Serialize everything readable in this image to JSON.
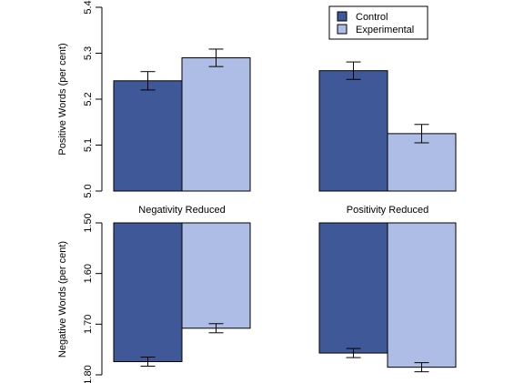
{
  "chart_data": [
    {
      "type": "bar",
      "panel": "top",
      "categories": [
        "Negativity Reduced",
        "Positivity Reduced"
      ],
      "ylabel": "Positive Words (per cent)",
      "ylim": [
        5.0,
        5.4
      ],
      "yticks": [
        "5.0",
        "5.1",
        "5.2",
        "5.3",
        "5.4"
      ],
      "grid": false,
      "legend_position": "top-right",
      "series": [
        {
          "name": "Control",
          "values": [
            5.24,
            5.262
          ],
          "errors": [
            0.02,
            0.019
          ]
        },
        {
          "name": "Experimental",
          "values": [
            5.29,
            5.125
          ],
          "errors": [
            0.019,
            0.02
          ]
        }
      ]
    },
    {
      "type": "bar",
      "panel": "bottom",
      "categories": [
        "Negativity Reduced",
        "Positivity Reduced"
      ],
      "ylabel": "Negative Words (per cent)",
      "ylim": [
        1.5,
        1.8
      ],
      "y_inverted": true,
      "yticks": [
        "1.50",
        "1.60",
        "1.70",
        "1.80"
      ],
      "grid": false,
      "series": [
        {
          "name": "Control",
          "values": [
            1.774,
            1.757
          ],
          "errors": [
            0.009,
            0.009
          ]
        },
        {
          "name": "Experimental",
          "values": [
            1.708,
            1.785
          ],
          "errors": [
            0.009,
            0.009
          ]
        }
      ]
    }
  ],
  "colors": {
    "Control": "#3f5898",
    "Experimental": "#aebde5"
  }
}
